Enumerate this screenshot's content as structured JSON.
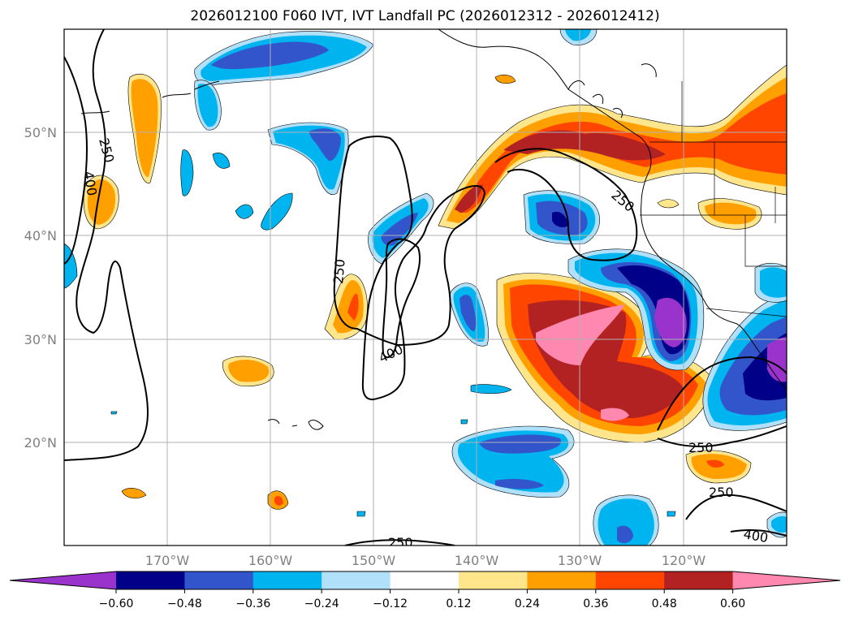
{
  "title": "2026012100 F060 IVT, IVT Landfall PC (2026012312 - 2026012412)",
  "lat_labels": [
    "50°N",
    "40°N",
    "30°N",
    "20°N"
  ],
  "lon_labels": [
    "170°W",
    "160°W",
    "150°W",
    "140°W",
    "130°W",
    "120°W"
  ],
  "contour_labels": [
    "250",
    "400",
    "250",
    "400",
    "250",
    "250",
    "250",
    "400",
    "250"
  ],
  "colorbar": {
    "ticks": [
      "−0.60",
      "−0.48",
      "−0.36",
      "−0.24",
      "−0.12",
      "0.12",
      "0.24",
      "0.36",
      "0.48",
      "0.60"
    ],
    "colors": [
      "#9933cc",
      "#000088",
      "#3355cc",
      "#00b4f0",
      "#b0e0fa",
      "#ffffff",
      "#ffe68c",
      "#ffa000",
      "#ff4500",
      "#b22222",
      "#ff88b0"
    ]
  },
  "map": {
    "lat_range": [
      10,
      60
    ],
    "lon_range": [
      -180,
      -110
    ]
  }
}
